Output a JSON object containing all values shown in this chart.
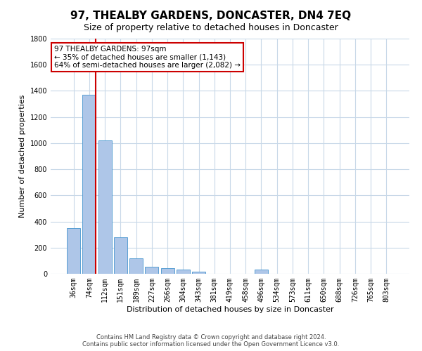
{
  "title": "97, THEALBY GARDENS, DONCASTER, DN4 7EQ",
  "subtitle": "Size of property relative to detached houses in Doncaster",
  "xlabel": "Distribution of detached houses by size in Doncaster",
  "ylabel": "Number of detached properties",
  "categories": [
    "36sqm",
    "74sqm",
    "112sqm",
    "151sqm",
    "189sqm",
    "227sqm",
    "266sqm",
    "304sqm",
    "343sqm",
    "381sqm",
    "419sqm",
    "458sqm",
    "496sqm",
    "534sqm",
    "573sqm",
    "611sqm",
    "650sqm",
    "688sqm",
    "726sqm",
    "765sqm",
    "803sqm"
  ],
  "values": [
    350,
    1370,
    1020,
    280,
    120,
    55,
    45,
    30,
    18,
    0,
    0,
    0,
    30,
    0,
    0,
    0,
    0,
    0,
    0,
    0,
    0
  ],
  "bar_color": "#aec6e8",
  "bar_edge_color": "#5a9fd4",
  "property_line_idx": 1,
  "property_line_color": "#cc0000",
  "ylim": [
    0,
    1800
  ],
  "yticks": [
    0,
    200,
    400,
    600,
    800,
    1000,
    1200,
    1400,
    1600,
    1800
  ],
  "annotation_title": "97 THEALBY GARDENS: 97sqm",
  "annotation_line1": "← 35% of detached houses are smaller (1,143)",
  "annotation_line2": "64% of semi-detached houses are larger (2,082) →",
  "annotation_box_color": "#cc0000",
  "footer_line1": "Contains HM Land Registry data © Crown copyright and database right 2024.",
  "footer_line2": "Contains public sector information licensed under the Open Government Licence v3.0.",
  "bg_color": "#ffffff",
  "grid_color": "#c8d8e8",
  "title_fontsize": 11,
  "subtitle_fontsize": 9,
  "axis_label_fontsize": 8,
  "tick_fontsize": 7,
  "annotation_fontsize": 7.5,
  "footer_fontsize": 6
}
